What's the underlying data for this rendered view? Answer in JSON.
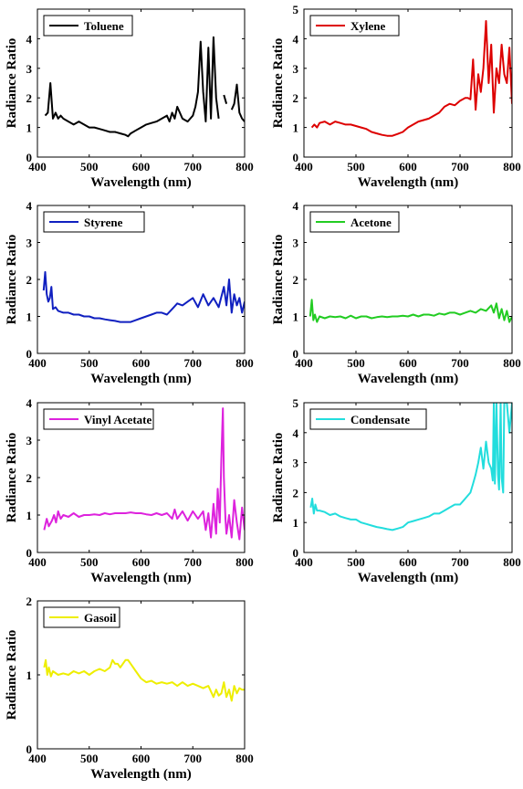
{
  "chart_data": [
    {
      "type": "line",
      "series": [
        {
          "name": "Toluene",
          "color": "#000000",
          "x": [
            415,
            420,
            425,
            430,
            435,
            440,
            445,
            450,
            460,
            470,
            480,
            490,
            500,
            510,
            520,
            530,
            540,
            550,
            560,
            570,
            575,
            580,
            590,
            600,
            610,
            620,
            630,
            640,
            650,
            655,
            660,
            665,
            670,
            680,
            690,
            700,
            705,
            710,
            715,
            720,
            725,
            730,
            735,
            740,
            745,
            750,
            755,
            760,
            765,
            770,
            775,
            780,
            785,
            790,
            795,
            800
          ],
          "y": [
            1.4,
            1.5,
            2.5,
            1.3,
            1.5,
            1.3,
            1.4,
            1.3,
            1.2,
            1.1,
            1.2,
            1.1,
            1.0,
            1.0,
            0.95,
            0.9,
            0.85,
            0.85,
            0.8,
            0.75,
            0.7,
            0.8,
            0.9,
            1.0,
            1.1,
            1.15,
            1.2,
            1.3,
            1.4,
            1.2,
            1.5,
            1.3,
            1.7,
            1.3,
            1.2,
            1.4,
            1.7,
            2.2,
            3.9,
            2.2,
            1.2,
            3.7,
            1.3,
            4.05,
            2.0,
            1.3,
            null,
            2.1,
            1.8,
            null,
            1.6,
            1.8,
            2.45,
            1.5,
            1.3,
            1.2
          ]
        }
      ],
      "xlim": [
        400,
        800
      ],
      "ylim": [
        0,
        5
      ],
      "xticks": [
        400,
        500,
        600,
        700,
        800
      ],
      "yticks": [
        0,
        1,
        2,
        3,
        4
      ],
      "xlabel": "Wavelength (nm)",
      "ylabel": "Radiance Ratio",
      "xticklabels": [
        "400",
        "500",
        "600",
        "700",
        "800"
      ],
      "yticklabels": [
        "0",
        "1",
        "2",
        "3",
        "4"
      ],
      "legend": "top-left"
    },
    {
      "type": "line",
      "series": [
        {
          "name": "Xylene",
          "color": "#dd0000",
          "x": [
            415,
            420,
            425,
            430,
            440,
            450,
            460,
            470,
            480,
            490,
            500,
            510,
            520,
            530,
            540,
            550,
            560,
            570,
            580,
            590,
            600,
            610,
            620,
            630,
            640,
            650,
            660,
            670,
            680,
            690,
            700,
            710,
            715,
            720,
            725,
            730,
            735,
            740,
            745,
            750,
            755,
            760,
            765,
            770,
            775,
            780,
            785,
            790,
            795,
            800
          ],
          "y": [
            1.0,
            1.1,
            1.0,
            1.15,
            1.2,
            1.1,
            1.2,
            1.15,
            1.1,
            1.1,
            1.05,
            1.0,
            0.95,
            0.85,
            0.8,
            0.75,
            0.72,
            0.72,
            0.78,
            0.85,
            1.0,
            1.1,
            1.2,
            1.25,
            1.3,
            1.4,
            1.5,
            1.7,
            1.8,
            1.75,
            1.9,
            2.0,
            2.0,
            1.95,
            3.3,
            1.6,
            2.8,
            2.2,
            3.0,
            4.6,
            2.5,
            3.8,
            1.5,
            3.0,
            2.5,
            3.8,
            2.8,
            2.5,
            3.7,
            1.8
          ]
        }
      ],
      "xlim": [
        400,
        800
      ],
      "ylim": [
        0,
        5
      ],
      "xticks": [
        400,
        500,
        600,
        700,
        800
      ],
      "yticks": [
        0,
        1,
        2,
        3,
        4,
        5
      ],
      "xlabel": "Wavelength (nm)",
      "ylabel": "Radiance Ratio",
      "xticklabels": [
        "400",
        "500",
        "600",
        "700",
        "800"
      ],
      "yticklabels": [
        "0",
        "1",
        "2",
        "3",
        "4",
        "5"
      ],
      "legend": "top-left"
    },
    {
      "type": "line",
      "series": [
        {
          "name": "Styrene",
          "color": "#1020c0",
          "x": [
            412,
            415,
            418,
            421,
            424,
            427,
            430,
            435,
            440,
            450,
            460,
            470,
            480,
            490,
            500,
            510,
            520,
            530,
            540,
            550,
            560,
            570,
            580,
            590,
            600,
            610,
            620,
            630,
            640,
            650,
            660,
            670,
            680,
            690,
            700,
            710,
            720,
            730,
            740,
            750,
            760,
            765,
            770,
            775,
            780,
            785,
            790,
            795,
            800
          ],
          "y": [
            1.7,
            2.2,
            1.6,
            1.4,
            1.5,
            1.8,
            1.2,
            1.25,
            1.15,
            1.1,
            1.1,
            1.05,
            1.05,
            1.0,
            1.0,
            0.95,
            0.95,
            0.92,
            0.9,
            0.88,
            0.85,
            0.85,
            0.85,
            0.9,
            0.95,
            1.0,
            1.05,
            1.1,
            1.1,
            1.05,
            1.2,
            1.35,
            1.3,
            1.4,
            1.5,
            1.25,
            1.6,
            1.3,
            1.5,
            1.25,
            1.8,
            1.3,
            2.0,
            1.1,
            1.6,
            1.3,
            1.5,
            1.1,
            1.4
          ]
        }
      ],
      "xlim": [
        400,
        800
      ],
      "ylim": [
        0,
        4
      ],
      "xticks": [
        400,
        500,
        600,
        700,
        800
      ],
      "yticks": [
        0,
        1,
        2,
        3,
        4
      ],
      "xlabel": "Wavelength (nm)",
      "ylabel": "Radiance Ratio",
      "xticklabels": [
        "400",
        "500",
        "600",
        "700",
        "800"
      ],
      "yticklabels": [
        "0",
        "1",
        "2",
        "3",
        "4"
      ],
      "legend": "top-left"
    },
    {
      "type": "line",
      "series": [
        {
          "name": "Acetone",
          "color": "#22cc22",
          "x": [
            412,
            415,
            418,
            421,
            425,
            430,
            440,
            450,
            460,
            470,
            480,
            490,
            500,
            510,
            520,
            530,
            540,
            550,
            560,
            570,
            580,
            590,
            600,
            610,
            620,
            630,
            640,
            650,
            660,
            670,
            680,
            690,
            700,
            710,
            720,
            730,
            740,
            750,
            760,
            765,
            770,
            775,
            780,
            785,
            790,
            795,
            800
          ],
          "y": [
            1.0,
            1.45,
            0.9,
            1.05,
            0.85,
            1.0,
            0.95,
            1.0,
            0.98,
            1.0,
            0.95,
            1.02,
            0.95,
            1.0,
            1.0,
            0.95,
            0.98,
            1.0,
            0.98,
            1.0,
            1.0,
            1.02,
            1.0,
            1.05,
            1.0,
            1.05,
            1.05,
            1.02,
            1.08,
            1.05,
            1.1,
            1.1,
            1.05,
            1.1,
            1.15,
            1.1,
            1.2,
            1.15,
            1.3,
            1.1,
            1.35,
            0.95,
            1.2,
            0.9,
            1.15,
            0.85,
            1.0
          ]
        }
      ],
      "xlim": [
        400,
        800
      ],
      "ylim": [
        0,
        4
      ],
      "xticks": [
        400,
        500,
        600,
        700,
        800
      ],
      "yticks": [
        0,
        1,
        2,
        3,
        4
      ],
      "xlabel": "Wavelength (nm)",
      "ylabel": "Radiance Ratio",
      "xticklabels": [
        "400",
        "500",
        "600",
        "700",
        "800"
      ],
      "yticklabels": [
        "0",
        "1",
        "2",
        "3",
        "4"
      ],
      "legend": "top-left"
    },
    {
      "type": "line",
      "series": [
        {
          "name": "Vinyl Acetate",
          "color": "#dd22dd",
          "x": [
            413,
            418,
            422,
            428,
            432,
            436,
            440,
            445,
            450,
            460,
            470,
            480,
            490,
            500,
            510,
            520,
            530,
            540,
            550,
            560,
            570,
            580,
            590,
            600,
            610,
            620,
            630,
            640,
            650,
            660,
            665,
            670,
            680,
            690,
            700,
            710,
            720,
            725,
            730,
            735,
            740,
            745,
            748,
            752,
            755,
            758,
            760,
            763,
            765,
            770,
            775,
            780,
            785,
            790,
            795,
            800
          ],
          "y": [
            0.6,
            0.9,
            0.7,
            0.85,
            1.0,
            0.8,
            1.1,
            0.9,
            1.0,
            0.95,
            1.05,
            0.95,
            1.0,
            1.0,
            1.02,
            1.0,
            1.05,
            1.02,
            1.05,
            1.05,
            1.05,
            1.07,
            1.05,
            1.05,
            1.02,
            1.0,
            1.05,
            1.0,
            1.05,
            0.9,
            1.15,
            0.9,
            1.1,
            0.85,
            1.1,
            0.9,
            1.1,
            0.6,
            1.05,
            0.4,
            1.3,
            0.5,
            1.7,
            0.8,
            2.5,
            3.85,
            2.0,
            0.9,
            0.5,
            1.0,
            0.4,
            1.4,
            0.8,
            0.35,
            1.2,
            0.6
          ]
        }
      ],
      "xlim": [
        400,
        800
      ],
      "ylim": [
        0,
        4
      ],
      "xticks": [
        400,
        500,
        600,
        700,
        800
      ],
      "yticks": [
        0,
        1,
        2,
        3,
        4
      ],
      "xlabel": "Wavelength (nm)",
      "ylabel": "Radiance Ratio",
      "xticklabels": [
        "400",
        "500",
        "600",
        "700",
        "800"
      ],
      "yticklabels": [
        "0",
        "1",
        "2",
        "3",
        "4"
      ],
      "legend": "top-left"
    },
    {
      "type": "line",
      "series": [
        {
          "name": "Condensate",
          "color": "#22dddd",
          "x": [
            413,
            416,
            419,
            422,
            425,
            430,
            440,
            450,
            460,
            470,
            480,
            490,
            500,
            510,
            520,
            530,
            540,
            550,
            560,
            570,
            580,
            590,
            600,
            610,
            620,
            630,
            640,
            650,
            660,
            670,
            680,
            690,
            700,
            710,
            720,
            725,
            730,
            735,
            740,
            745,
            750,
            755,
            760,
            763,
            765,
            767,
            770,
            773,
            775,
            778,
            780,
            783,
            785,
            790,
            795,
            800
          ],
          "y": [
            1.5,
            1.8,
            1.3,
            1.6,
            1.4,
            1.4,
            1.35,
            1.25,
            1.3,
            1.2,
            1.15,
            1.1,
            1.1,
            1.0,
            0.95,
            0.9,
            0.85,
            0.82,
            0.78,
            0.75,
            0.8,
            0.85,
            1.0,
            1.05,
            1.1,
            1.15,
            1.2,
            1.3,
            1.3,
            1.4,
            1.5,
            1.6,
            1.6,
            1.8,
            2.0,
            2.3,
            2.6,
            3.0,
            3.5,
            2.8,
            3.7,
            3.0,
            2.8,
            2.4,
            5.0,
            2.3,
            5.0,
            2.6,
            2.1,
            5.0,
            2.5,
            2.0,
            5.0,
            5.0,
            4.0,
            5.0
          ]
        }
      ],
      "xlim": [
        400,
        800
      ],
      "ylim": [
        0,
        5
      ],
      "xticks": [
        400,
        500,
        600,
        700,
        800
      ],
      "yticks": [
        0,
        1,
        2,
        3,
        4,
        5
      ],
      "xlabel": "Wavelength (nm)",
      "ylabel": "Radiance Ratio",
      "xticklabels": [
        "400",
        "500",
        "600",
        "700",
        "800"
      ],
      "yticklabels": [
        "0",
        "1",
        "2",
        "3",
        "4",
        "5"
      ],
      "legend": "top-left"
    },
    {
      "type": "line",
      "series": [
        {
          "name": "Gasoil",
          "color": "#eeee00",
          "x": [
            413,
            416,
            419,
            422,
            426,
            430,
            440,
            450,
            460,
            470,
            480,
            490,
            500,
            510,
            520,
            530,
            540,
            545,
            550,
            555,
            560,
            565,
            570,
            575,
            580,
            590,
            600,
            610,
            620,
            630,
            640,
            650,
            660,
            670,
            680,
            690,
            700,
            710,
            720,
            730,
            740,
            745,
            750,
            755,
            760,
            765,
            770,
            775,
            780,
            785,
            790,
            795,
            800
          ],
          "y": [
            1.1,
            1.2,
            1.0,
            1.1,
            0.98,
            1.05,
            1.0,
            1.02,
            1.0,
            1.05,
            1.02,
            1.05,
            1.0,
            1.05,
            1.08,
            1.05,
            1.1,
            1.2,
            1.15,
            1.15,
            1.1,
            1.15,
            1.2,
            1.2,
            1.15,
            1.05,
            0.95,
            0.9,
            0.92,
            0.88,
            0.9,
            0.88,
            0.9,
            0.85,
            0.9,
            0.85,
            0.88,
            0.85,
            0.82,
            0.85,
            0.7,
            0.8,
            0.72,
            0.75,
            0.9,
            0.7,
            0.8,
            0.65,
            0.85,
            0.75,
            0.82,
            0.8,
            0.8
          ]
        }
      ],
      "xlim": [
        400,
        800
      ],
      "ylim": [
        0,
        2
      ],
      "xticks": [
        400,
        500,
        600,
        700,
        800
      ],
      "yticks": [
        0,
        1,
        2
      ],
      "xlabel": "Wavelength (nm)",
      "ylabel": "Radiance Ratio",
      "xticklabels": [
        "400",
        "500",
        "600",
        "700",
        "800"
      ],
      "yticklabels": [
        "0",
        "1",
        "2"
      ],
      "legend": "top-left"
    }
  ]
}
